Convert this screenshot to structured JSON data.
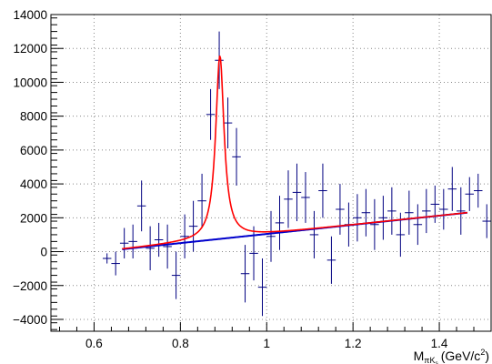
{
  "chart_data": {
    "type": "scatter",
    "title": "",
    "xlabel": "M",
    "xlabel_sub": "πK",
    "xlabel_subsub": "s",
    "xlabel_unit_open": "(GeV/c",
    "xlabel_unit_sup": "2",
    "xlabel_unit_close": ")",
    "ylabel": "",
    "xlim": [
      0.5,
      1.52
    ],
    "ylim": [
      -4700,
      14000
    ],
    "grid": true,
    "legend": "none",
    "x_ticks": [
      {
        "value": 0.6,
        "label": "0.6"
      },
      {
        "value": 0.8,
        "label": "0.8"
      },
      {
        "value": 1.0,
        "label": "1"
      },
      {
        "value": 1.2,
        "label": "1.2"
      },
      {
        "value": 1.4,
        "label": "1.4"
      }
    ],
    "y_ticks": [
      {
        "value": -4000,
        "label": "−4000"
      },
      {
        "value": -2000,
        "label": "−2000"
      },
      {
        "value": 0,
        "label": "0"
      },
      {
        "value": 2000,
        "label": "2000"
      },
      {
        "value": 4000,
        "label": "4000"
      },
      {
        "value": 6000,
        "label": "6000"
      },
      {
        "value": 8000,
        "label": "8000"
      },
      {
        "value": 10000,
        "label": "10000"
      },
      {
        "value": 12000,
        "label": "12000"
      },
      {
        "value": 14000,
        "label": "14000"
      }
    ],
    "data_points": {
      "name": "data",
      "color": "#000080",
      "bin_half_width": 0.01,
      "points": [
        {
          "x": 0.63,
          "y": -400,
          "err": 300
        },
        {
          "x": 0.65,
          "y": -700,
          "err": 700
        },
        {
          "x": 0.67,
          "y": 500,
          "err": 900
        },
        {
          "x": 0.69,
          "y": 600,
          "err": 1000
        },
        {
          "x": 0.71,
          "y": 2700,
          "err": 1500
        },
        {
          "x": 0.73,
          "y": 200,
          "err": 1300
        },
        {
          "x": 0.75,
          "y": 700,
          "err": 1000
        },
        {
          "x": 0.77,
          "y": 300,
          "err": 1300
        },
        {
          "x": 0.79,
          "y": -1400,
          "err": 1400
        },
        {
          "x": 0.81,
          "y": 900,
          "err": 1300
        },
        {
          "x": 0.83,
          "y": 1500,
          "err": 1500
        },
        {
          "x": 0.85,
          "y": 3000,
          "err": 1600
        },
        {
          "x": 0.87,
          "y": 8100,
          "err": 1500
        },
        {
          "x": 0.89,
          "y": 11300,
          "err": 1700
        },
        {
          "x": 0.91,
          "y": 7600,
          "err": 1500
        },
        {
          "x": 0.93,
          "y": 5600,
          "err": 1700
        },
        {
          "x": 0.95,
          "y": -1300,
          "err": 1700
        },
        {
          "x": 0.97,
          "y": -100,
          "err": 1600
        },
        {
          "x": 0.99,
          "y": -2100,
          "err": 1700
        },
        {
          "x": 1.01,
          "y": 900,
          "err": 1500
        },
        {
          "x": 1.03,
          "y": 1700,
          "err": 1600
        },
        {
          "x": 1.05,
          "y": 3100,
          "err": 1700
        },
        {
          "x": 1.07,
          "y": 3500,
          "err": 1700
        },
        {
          "x": 1.09,
          "y": 3200,
          "err": 1500
        },
        {
          "x": 1.11,
          "y": 1000,
          "err": 1400
        },
        {
          "x": 1.13,
          "y": 3600,
          "err": 1600
        },
        {
          "x": 1.15,
          "y": -500,
          "err": 1400
        },
        {
          "x": 1.17,
          "y": 2500,
          "err": 1500
        },
        {
          "x": 1.19,
          "y": 1600,
          "err": 1300
        },
        {
          "x": 1.21,
          "y": 2000,
          "err": 1400
        },
        {
          "x": 1.23,
          "y": 2300,
          "err": 1400
        },
        {
          "x": 1.25,
          "y": 1600,
          "err": 1500
        },
        {
          "x": 1.27,
          "y": 2000,
          "err": 1300
        },
        {
          "x": 1.29,
          "y": 2400,
          "err": 1400
        },
        {
          "x": 1.31,
          "y": 1000,
          "err": 1300
        },
        {
          "x": 1.33,
          "y": 2300,
          "err": 1300
        },
        {
          "x": 1.35,
          "y": 1600,
          "err": 1200
        },
        {
          "x": 1.37,
          "y": 2400,
          "err": 1300
        },
        {
          "x": 1.39,
          "y": 2800,
          "err": 1100
        },
        {
          "x": 1.41,
          "y": 2500,
          "err": 1200
        },
        {
          "x": 1.43,
          "y": 3700,
          "err": 1300
        },
        {
          "x": 1.45,
          "y": 2400,
          "err": 1400
        },
        {
          "x": 1.47,
          "y": 3400,
          "err": 1000
        },
        {
          "x": 1.49,
          "y": 3600,
          "err": 1000
        },
        {
          "x": 1.51,
          "y": 1800,
          "err": 1000
        },
        {
          "x": 1.53,
          "y": 3100,
          "err": 1300
        }
      ]
    },
    "fit_total": {
      "name": "total fit",
      "color": "#ff0000",
      "x_range": [
        0.665,
        1.465
      ],
      "peak_center": 0.8915,
      "peak_width": 0.0235,
      "peak_height": 10840,
      "background_intercept": 140,
      "background_slope": 2700
    },
    "fit_background": {
      "name": "background",
      "color": "#0000cc",
      "x_range": [
        0.665,
        1.465
      ],
      "background_intercept": 140,
      "background_slope": 2700
    }
  }
}
